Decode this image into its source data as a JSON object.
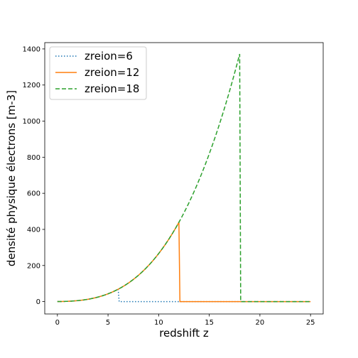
{
  "chart_data": {
    "type": "line",
    "xlabel": "redshift z",
    "ylabel": "densité physique électrons [m-3]",
    "xlim": [
      -1.25,
      26.25
    ],
    "ylim": [
      -68.5,
      1435
    ],
    "xticks": [
      0,
      5,
      10,
      15,
      20,
      25
    ],
    "yticks": [
      0,
      200,
      400,
      600,
      800,
      1000,
      1200,
      1400
    ],
    "grid": false,
    "legend_position": "top-left",
    "base_density": 0.2,
    "series": [
      {
        "name": "zreion=6",
        "zreion": 6,
        "color": "#1f77b4",
        "style": "dotted"
      },
      {
        "name": "zreion=12",
        "zreion": 12,
        "color": "#ff7f0e",
        "style": "solid"
      },
      {
        "name": "zreion=18",
        "zreion": 18,
        "color": "#2ca02c",
        "style": "dashed"
      }
    ],
    "z_range": [
      0,
      25
    ]
  }
}
